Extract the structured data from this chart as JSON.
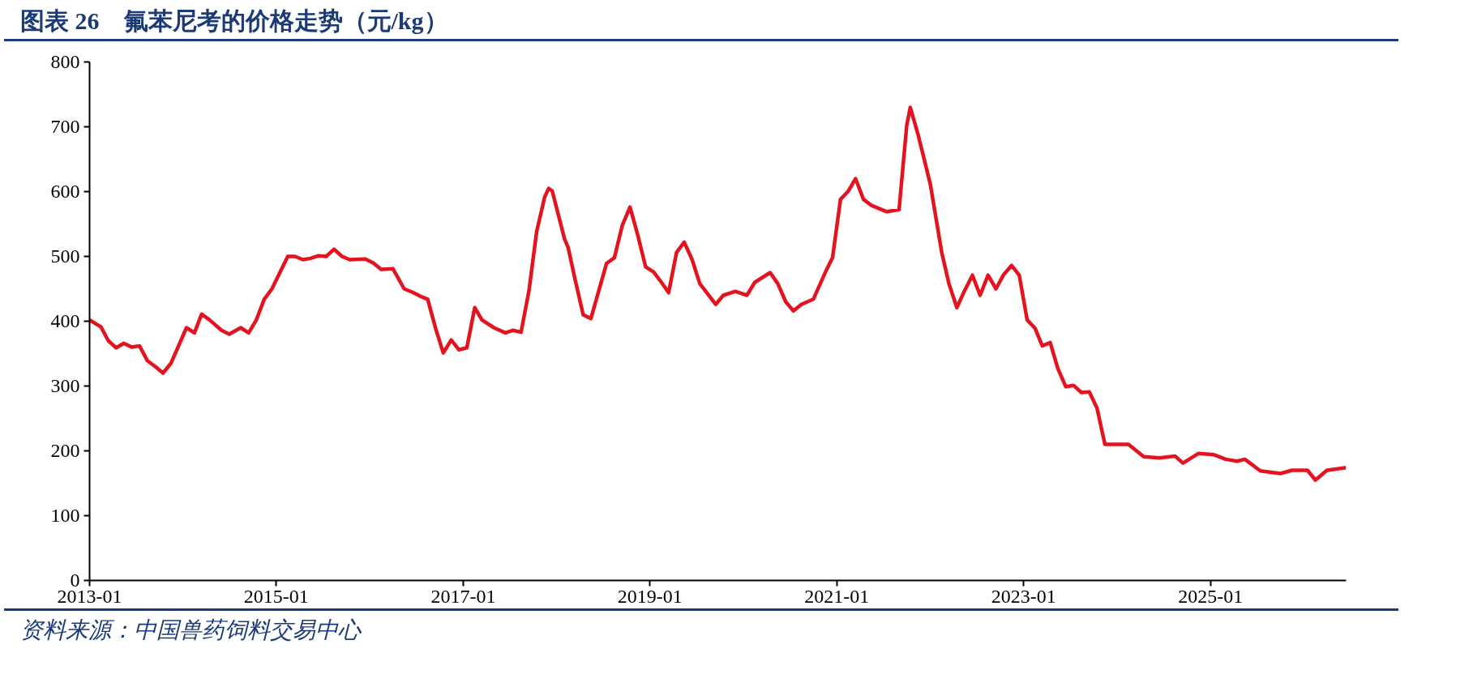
{
  "chart_data": {
    "type": "line",
    "title": "图表 26　氟苯尼考的价格走势（元/kg）",
    "annotations": [
      "资料来源：中国兽药饲料交易中心"
    ],
    "x": [
      "2013-01-01",
      "2013-02-15",
      "2013-03-15",
      "2013-04-15",
      "2013-05-15",
      "2013-06-15",
      "2013-07-15",
      "2013-08-15",
      "2013-09-15",
      "2013-10-15",
      "2013-11-15",
      "2013-12-15",
      "2014-01-15",
      "2014-02-15",
      "2014-03-15",
      "2014-04-15",
      "2014-06-01",
      "2014-07-01",
      "2014-08-15",
      "2014-09-15",
      "2014-10-15",
      "2014-11-15",
      "2014-12-15",
      "2015-02-15",
      "2015-03-15",
      "2015-04-15",
      "2015-05-15",
      "2015-06-15",
      "2015-07-15",
      "2015-08-15",
      "2015-09-15",
      "2015-10-15",
      "2015-12-15",
      "2016-01-15",
      "2016-02-15",
      "2016-04-01",
      "2016-05-15",
      "2016-06-15",
      "2016-07-15",
      "2016-08-15",
      "2016-09-15",
      "2016-10-15",
      "2016-11-15",
      "2016-12-15",
      "2017-01-15",
      "2017-02-15",
      "2017-03-15",
      "2017-05-01",
      "2017-06-15",
      "2017-07-15",
      "2017-08-15",
      "2017-09-15",
      "2017-10-15",
      "2017-11-15",
      "2017-12-01",
      "2017-12-15",
      "2018-02-01",
      "2018-02-15",
      "2018-03-15",
      "2018-04-15",
      "2018-05-15",
      "2018-06-15",
      "2018-07-15",
      "2018-08-15",
      "2018-09-15",
      "2018-10-15",
      "2018-11-15",
      "2018-12-15",
      "2019-01-15",
      "2019-02-15",
      "2019-03-15",
      "2019-04-15",
      "2019-05-15",
      "2019-06-15",
      "2019-07-15",
      "2019-09-15",
      "2019-10-15",
      "2019-12-01",
      "2020-01-15",
      "2020-02-15",
      "2020-04-15",
      "2020-05-15",
      "2020-06-15",
      "2020-07-15",
      "2020-08-15",
      "2020-10-01",
      "2020-11-15",
      "2020-12-15",
      "2021-01-15",
      "2021-02-15",
      "2021-03-15",
      "2021-04-15",
      "2021-05-15",
      "2021-07-15",
      "2021-09-01",
      "2021-10-01",
      "2021-10-15",
      "2021-11-15",
      "2022-01-01",
      "2022-02-15",
      "2022-03-15",
      "2022-04-15",
      "2022-05-15",
      "2022-06-15",
      "2022-07-15",
      "2022-08-15",
      "2022-09-15",
      "2022-10-15",
      "2022-11-15",
      "2022-12-15",
      "2023-01-15",
      "2023-02-15",
      "2023-03-15",
      "2023-04-15",
      "2023-05-15",
      "2023-06-15",
      "2023-07-15",
      "2023-08-15",
      "2023-09-15",
      "2023-10-15",
      "2023-11-15",
      "2023-12-15",
      "2024-02-15",
      "2024-04-15",
      "2024-06-15",
      "2024-08-15",
      "2024-09-15",
      "2024-11-15",
      "2025-01-15",
      "2025-03-01",
      "2025-04-15",
      "2025-05-15",
      "2025-07-15",
      "2025-10-01",
      "2025-11-15",
      "2026-01-15",
      "2026-02-15",
      "2026-04-01",
      "2026-06-15"
    ],
    "series": [
      {
        "color": "#e3141f",
        "values": [
          402,
          391,
          370,
          359,
          366,
          360,
          362,
          339,
          330,
          320,
          335,
          362,
          390,
          382,
          411,
          402,
          386,
          380,
          390,
          382,
          402,
          434,
          450,
          500,
          500,
          495,
          497,
          501,
          500,
          511,
          500,
          495,
          496,
          490,
          480,
          481,
          450,
          445,
          439,
          434,
          389,
          351,
          371,
          356,
          359,
          421,
          402,
          390,
          382,
          386,
          383,
          447,
          538,
          591,
          605,
          601,
          527,
          514,
          463,
          410,
          404,
          447,
          489,
          498,
          548,
          576,
          532,
          484,
          476,
          460,
          444,
          506,
          522,
          495,
          458,
          426,
          440,
          446,
          440,
          460,
          475,
          458,
          430,
          416,
          426,
          434,
          474,
          498,
          588,
          601,
          620,
          588,
          579,
          569,
          572,
          702,
          730,
          687,
          612,
          506,
          458,
          421,
          447,
          471,
          440,
          471,
          450,
          472,
          486,
          471,
          402,
          389,
          362,
          367,
          327,
          299,
          301,
          290,
          291,
          266,
          210,
          210,
          210,
          191,
          189,
          192,
          181,
          196,
          194,
          187,
          184,
          187,
          169,
          165,
          170,
          170,
          155,
          170,
          174
        ]
      }
    ],
    "xlim": [
      "2013-01-01",
      "2026-06-15"
    ],
    "xticks": [
      "2013-01",
      "2015-01",
      "2017-01",
      "2019-01",
      "2021-01",
      "2023-01",
      "2025-01"
    ],
    "ylim": [
      0,
      800
    ],
    "yticks": [
      0,
      100,
      200,
      300,
      400,
      500,
      600,
      700,
      800
    ],
    "grid": false,
    "line_style": "solid"
  }
}
